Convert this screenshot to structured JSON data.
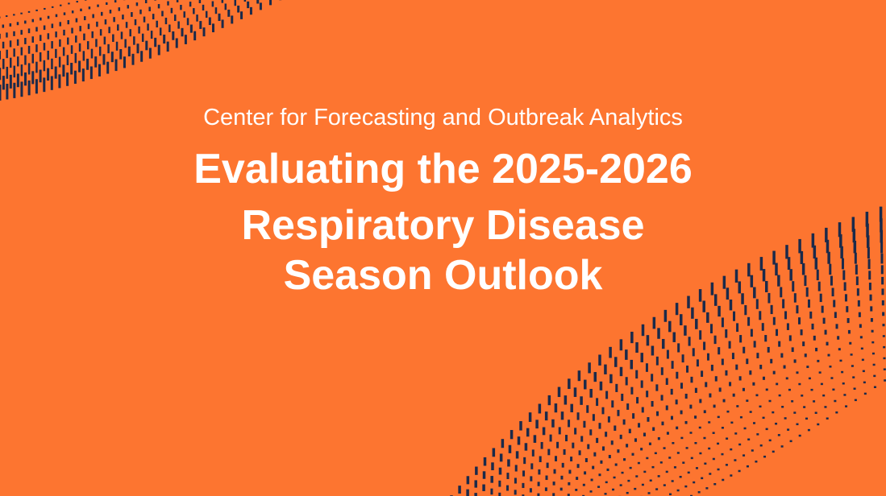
{
  "header": {
    "subtitle": "Center for Forecasting and Outbreak Analytics",
    "title_lines": [
      "Evaluating the 2025-2026",
      "Respiratory Disease",
      "Season Outlook"
    ]
  }
}
